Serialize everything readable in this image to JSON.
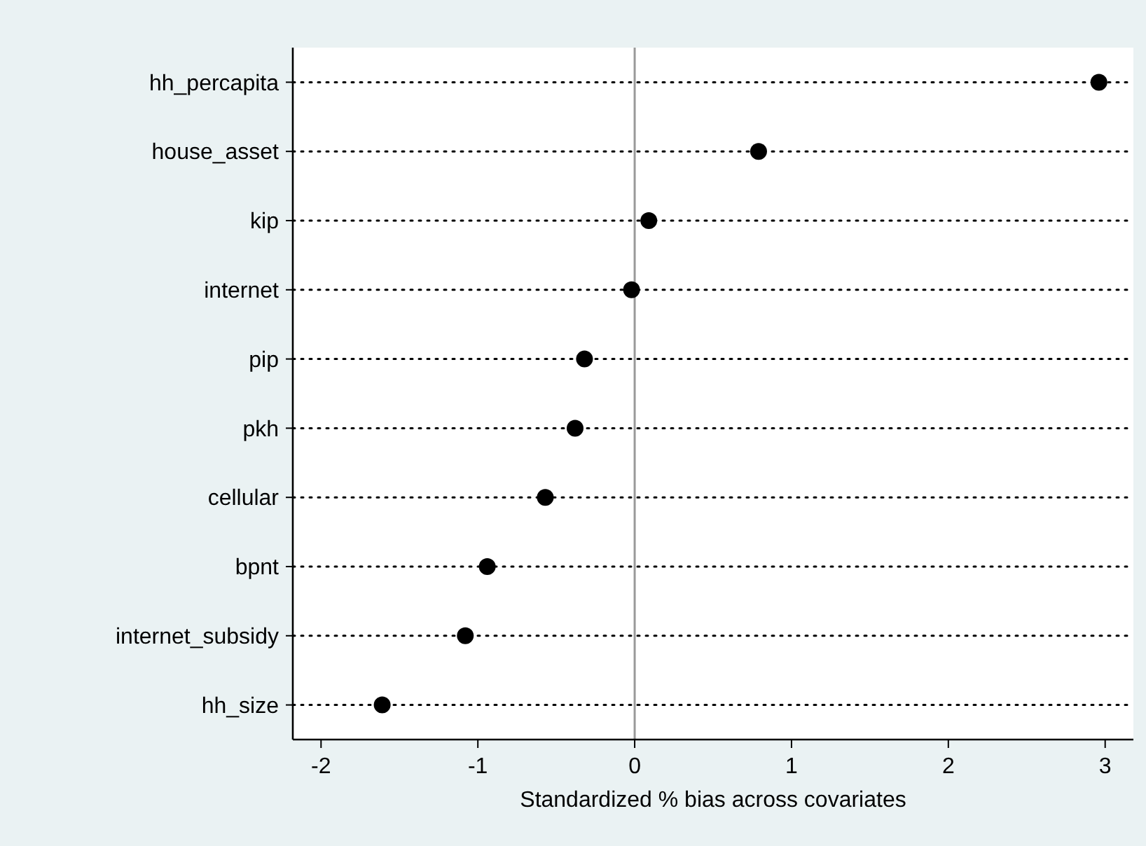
{
  "chart_data": {
    "type": "scatter",
    "orientation": "horizontal",
    "xlabel": "Standardized % bias across covariates",
    "categories": [
      "hh_percapita",
      "house_asset",
      "kip",
      "internet",
      "pip",
      "pkh",
      "cellular",
      "bpnt",
      "internet_subsidy",
      "hh_size"
    ],
    "values": [
      2.96,
      0.79,
      0.09,
      -0.02,
      -0.32,
      -0.38,
      -0.57,
      -0.94,
      -1.08,
      -1.61
    ],
    "color": "#000000",
    "xlim": [
      -2.18,
      3.18
    ],
    "xticks": [
      -2,
      -1,
      0,
      1,
      2,
      3
    ],
    "ref_lines": [
      {
        "axis": "x",
        "value": 0,
        "color": "#999999"
      }
    ],
    "grid": "y",
    "marker": "circle"
  }
}
